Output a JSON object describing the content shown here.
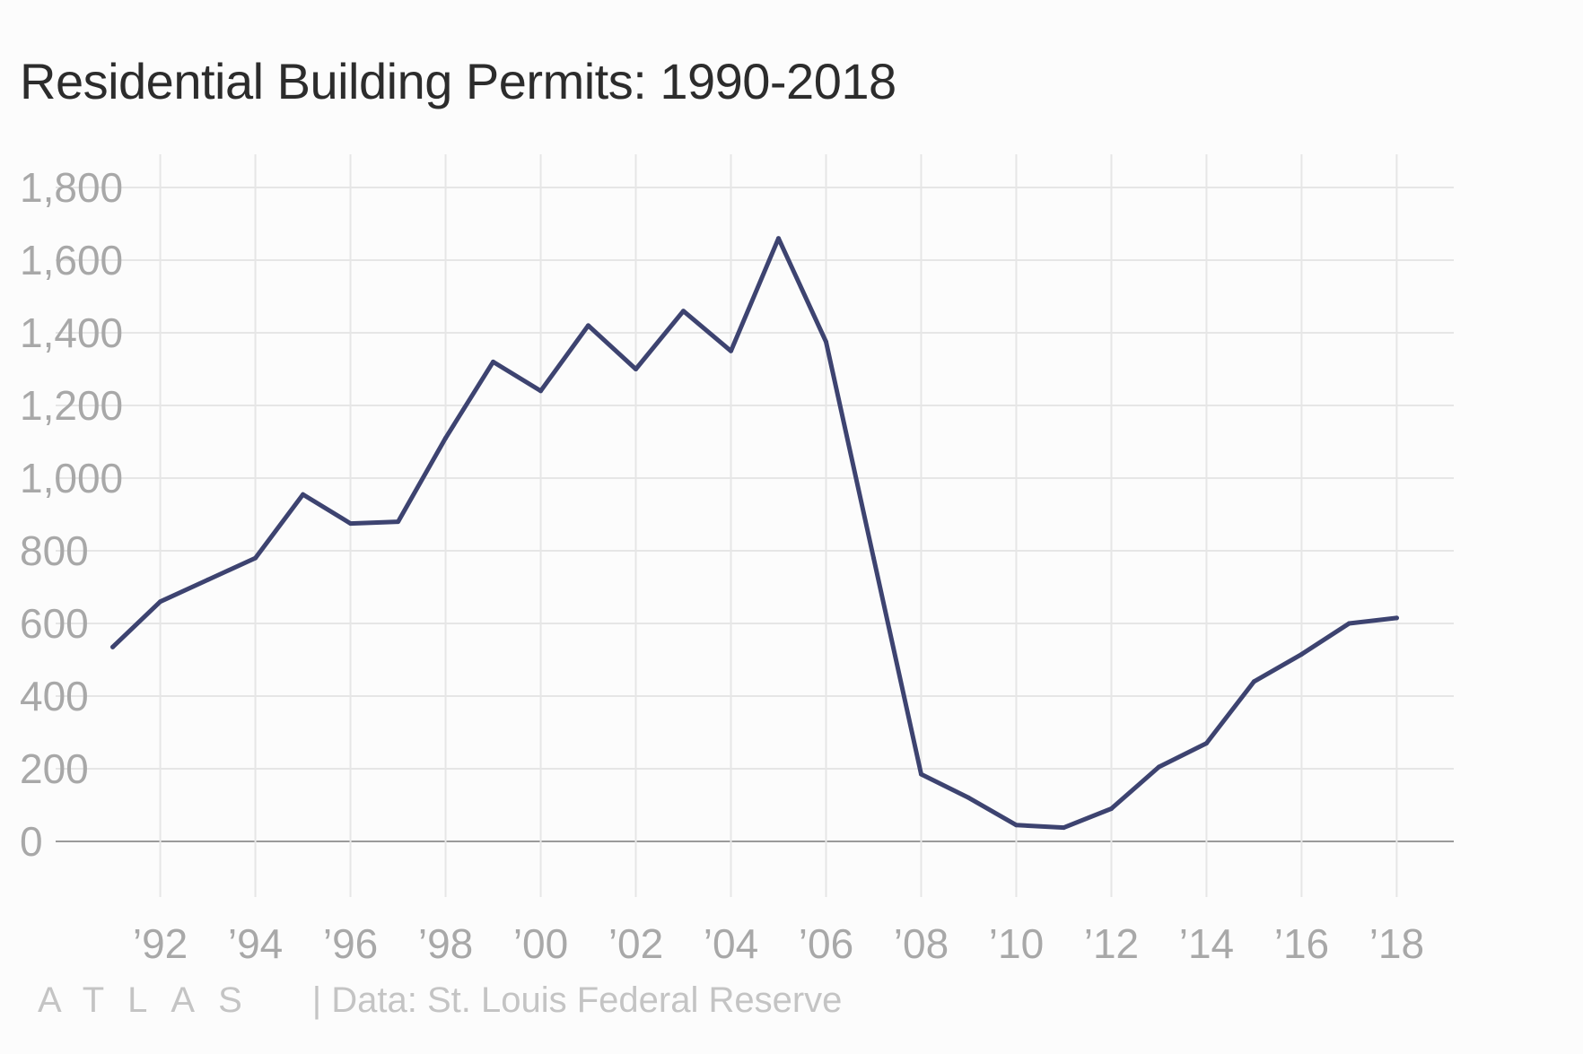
{
  "chart_data": {
    "type": "line",
    "title": "Residential Building Permits: 1990-2018",
    "xlabel": "",
    "ylabel": "",
    "xlim": [
      1989.8,
      2019.2
    ],
    "ylim": [
      0,
      1800
    ],
    "yticks": [
      0,
      200,
      400,
      600,
      800,
      1000,
      1200,
      1400,
      1600,
      1800
    ],
    "ytick_labels": [
      "0",
      "200",
      "400",
      "600",
      "800",
      "1,000",
      "1,200",
      "1,400",
      "1,600",
      "1,800"
    ],
    "xticks": [
      1992,
      1994,
      1996,
      1998,
      2000,
      2002,
      2004,
      2006,
      2008,
      2010,
      2012,
      2014,
      2016,
      2018
    ],
    "xtick_labels": [
      "’92",
      "’94",
      "’96",
      "’98",
      "’00",
      "’02",
      "’04",
      "’06",
      "’08",
      "’10",
      "’12",
      "’14",
      "’16",
      "’18"
    ],
    "grid": true,
    "line_color": "#3d4370",
    "grid_color": "#e6e6e6",
    "series": [
      {
        "x": [
          1991,
          1992,
          1993,
          1994,
          1995,
          1996,
          1997,
          1998,
          1999,
          2000,
          2001,
          2002,
          2003,
          2004,
          2005,
          2006,
          2007,
          2008,
          2009,
          2010,
          2011,
          2012,
          2013,
          2014,
          2015,
          2016,
          2017,
          2018
        ],
        "values": [
          535,
          660,
          720,
          780,
          955,
          875,
          880,
          1110,
          1320,
          1240,
          1420,
          1300,
          1460,
          1350,
          1660,
          1375,
          780,
          185,
          120,
          45,
          38,
          90,
          205,
          270,
          440,
          515,
          600,
          615
        ]
      }
    ]
  },
  "footer": {
    "brand": "ATLAS",
    "source": "| Data: St. Louis Federal Reserve"
  }
}
